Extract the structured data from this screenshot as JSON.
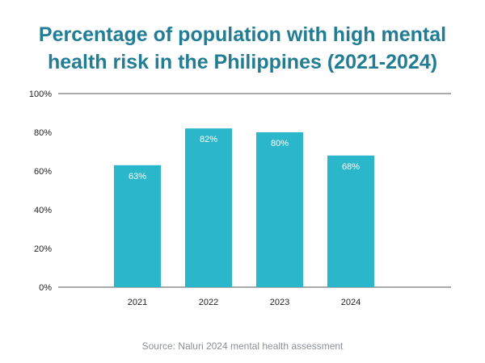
{
  "title_lines": [
    "Percentage of population with high mental",
    "health risk in the Philippines (2021-2024)"
  ],
  "source": "Source: Naluri 2024 mental health assessment",
  "colors": {
    "title": "#1f7d96",
    "bar": "#2ab7cb",
    "gridline": "#555555",
    "source": "#8a9099"
  },
  "chart_data": {
    "type": "bar",
    "title": "Percentage of population with high mental health risk in the Philippines (2021-2024)",
    "categories": [
      "2021",
      "2022",
      "2023",
      "2024"
    ],
    "values": [
      63,
      82,
      80,
      68
    ],
    "value_labels": [
      "63%",
      "82%",
      "80%",
      "68%"
    ],
    "xlabel": "",
    "ylabel": "",
    "ylim": [
      0,
      100
    ],
    "yticks": [
      0,
      20,
      40,
      60,
      80,
      100
    ],
    "ytick_labels": [
      "0%",
      "20%",
      "40%",
      "60%",
      "80%",
      "100%"
    ],
    "grid": "horizontal lines at 0% and 100% only",
    "legend": "none"
  }
}
